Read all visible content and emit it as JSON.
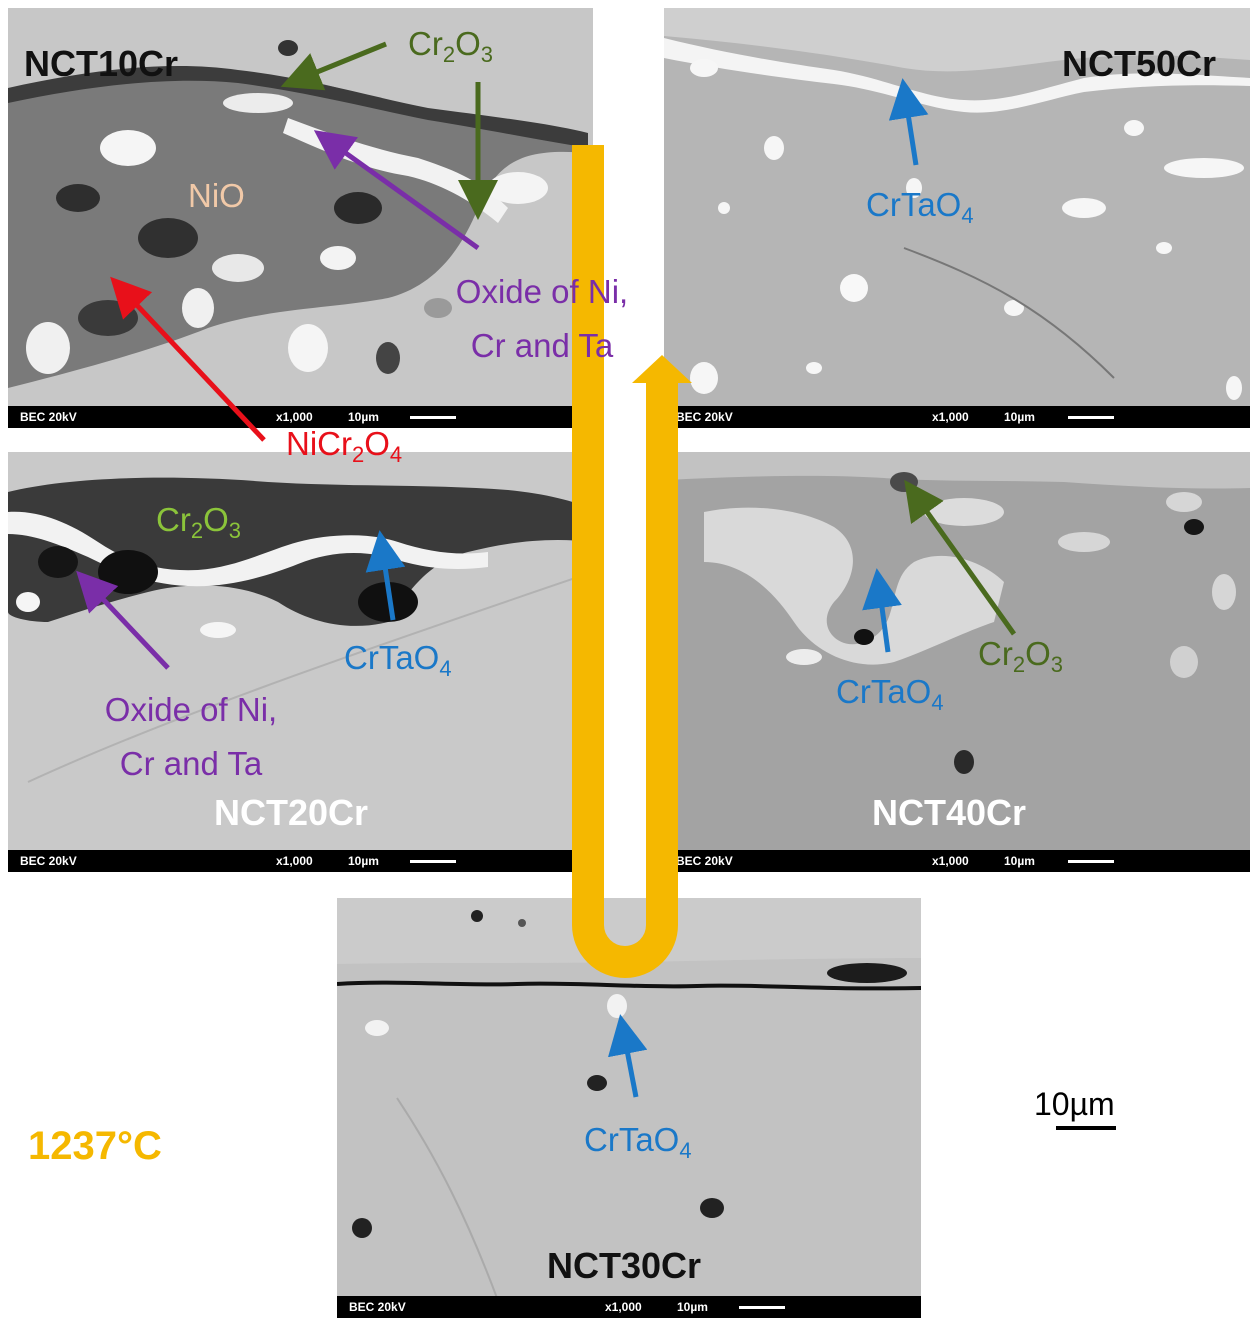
{
  "figure": {
    "temperature": "1237°C",
    "scale_label": "10µm",
    "colors": {
      "arrow_u": "#f5b800",
      "red": "#e8101a",
      "purple": "#7a2ea8",
      "dark_green": "#4a6a1e",
      "light_green": "#8bc43a",
      "blue": "#1a78c8",
      "peach": "#f1c9a8"
    }
  },
  "panels": {
    "nct10": {
      "sample": "NCT10Cr",
      "info": {
        "mode": "BEC 20kV",
        "mag": "x1,000",
        "scale": "10µm"
      },
      "labels": {
        "cr2o3_main": "Cr",
        "cr2o3_sub2": "2",
        "cr2o3_o": "O",
        "cr2o3_sub3": "3",
        "nio": "NiO",
        "oxide_line1": "Oxide of Ni,",
        "oxide_line2": "Cr and Ta"
      }
    },
    "nct20": {
      "sample": "NCT20Cr",
      "info": {
        "mode": "BEC 20kV",
        "mag": "x1,000",
        "scale": "10µm"
      },
      "labels": {
        "nicr_main": "NiCr",
        "nicr_sub2": "2",
        "nicr_o": "O",
        "nicr_sub4": "4",
        "cr2o3_main": "Cr",
        "cr2o3_sub2": "2",
        "cr2o3_o": "O",
        "cr2o3_sub3": "3",
        "crtao4_main": "CrTaO",
        "crtao4_sub": "4",
        "oxide_line1": "Oxide of Ni,",
        "oxide_line2": "Cr and Ta"
      }
    },
    "nct30": {
      "sample": "NCT30Cr",
      "info": {
        "mode": "BEC 20kV",
        "mag": "x1,000",
        "scale": "10µm"
      },
      "labels": {
        "crtao4_main": "CrTaO",
        "crtao4_sub": "4"
      }
    },
    "nct40": {
      "sample": "NCT40Cr",
      "info": {
        "mode": "BEC 20kV",
        "mag": "x1,000",
        "scale": "10µm"
      },
      "labels": {
        "crtao4_main": "CrTaO",
        "crtao4_sub": "4",
        "cr2o3_main": "Cr",
        "cr2o3_sub2": "2",
        "cr2o3_o": "O",
        "cr2o3_sub3": "3"
      }
    },
    "nct50": {
      "sample": "NCT50Cr",
      "info": {
        "mode": "BEC 20kV",
        "mag": "x1,000",
        "scale": "10µm"
      },
      "labels": {
        "crtao4_main": "CrTaO",
        "crtao4_sub": "4"
      }
    }
  }
}
